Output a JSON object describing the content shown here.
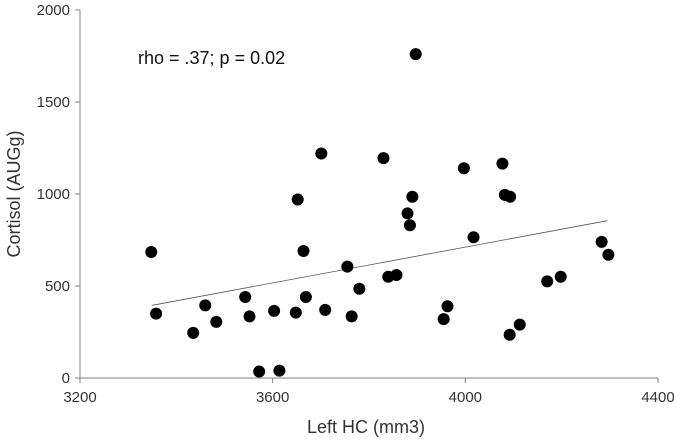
{
  "chart_data": {
    "type": "scatter",
    "title": "",
    "xlabel": "Left HC (mm3)",
    "ylabel": "Cortisol  (AUGg)",
    "annotation": "rho = .37; p = 0.02",
    "xlim": [
      3200,
      4400
    ],
    "ylim": [
      0,
      2000
    ],
    "xticks": [
      3200,
      3600,
      4000,
      4400
    ],
    "yticks": [
      0,
      500,
      1000,
      1500,
      2000
    ],
    "grid": false,
    "legend": "none",
    "point_color": "#000000",
    "trendline": {
      "type": "linear",
      "x": [
        3350,
        4295
      ],
      "y": [
        395,
        855
      ]
    },
    "points": [
      {
        "x": 3348,
        "y": 685
      },
      {
        "x": 3358,
        "y": 350
      },
      {
        "x": 3435,
        "y": 245
      },
      {
        "x": 3460,
        "y": 395
      },
      {
        "x": 3483,
        "y": 305
      },
      {
        "x": 3543,
        "y": 440
      },
      {
        "x": 3552,
        "y": 335
      },
      {
        "x": 3572,
        "y": 35
      },
      {
        "x": 3603,
        "y": 365
      },
      {
        "x": 3614,
        "y": 40
      },
      {
        "x": 3648,
        "y": 355
      },
      {
        "x": 3652,
        "y": 970
      },
      {
        "x": 3664,
        "y": 690
      },
      {
        "x": 3669,
        "y": 440
      },
      {
        "x": 3701,
        "y": 1220
      },
      {
        "x": 3709,
        "y": 370
      },
      {
        "x": 3755,
        "y": 605
      },
      {
        "x": 3764,
        "y": 335
      },
      {
        "x": 3780,
        "y": 485
      },
      {
        "x": 3830,
        "y": 1195
      },
      {
        "x": 3840,
        "y": 550
      },
      {
        "x": 3857,
        "y": 560
      },
      {
        "x": 3880,
        "y": 895
      },
      {
        "x": 3885,
        "y": 830
      },
      {
        "x": 3890,
        "y": 985
      },
      {
        "x": 3897,
        "y": 1760
      },
      {
        "x": 3955,
        "y": 320
      },
      {
        "x": 3963,
        "y": 390
      },
      {
        "x": 3997,
        "y": 1140
      },
      {
        "x": 4017,
        "y": 765
      },
      {
        "x": 4077,
        "y": 1165
      },
      {
        "x": 4082,
        "y": 995
      },
      {
        "x": 4093,
        "y": 985
      },
      {
        "x": 4092,
        "y": 235
      },
      {
        "x": 4113,
        "y": 290
      },
      {
        "x": 4170,
        "y": 525
      },
      {
        "x": 4198,
        "y": 550
      },
      {
        "x": 4283,
        "y": 740
      },
      {
        "x": 4297,
        "y": 670
      }
    ]
  }
}
